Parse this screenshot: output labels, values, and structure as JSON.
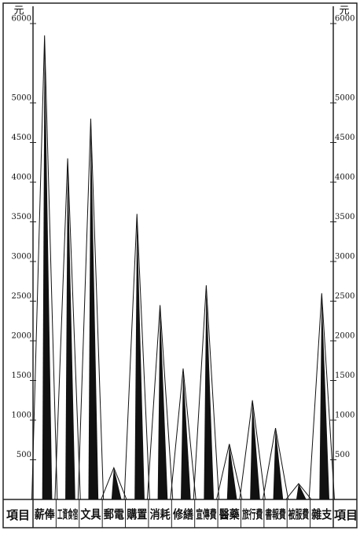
{
  "chart_data": {
    "type": "spike",
    "unit": "元",
    "axis_label": "項目",
    "categories": [
      "薪俸",
      "工資食宿",
      "文具",
      "郵電",
      "購置",
      "消耗",
      "修繕",
      "宣傳費",
      "醫藥",
      "旅行費",
      "書報費",
      "被服費",
      "雜支"
    ],
    "values": [
      5850,
      4300,
      4800,
      400,
      3600,
      2450,
      1650,
      2700,
      700,
      1250,
      900,
      200,
      2600
    ],
    "color": "#111111",
    "ylim": [
      0,
      6000
    ],
    "yticks": [
      500,
      1000,
      1500,
      2000,
      2500,
      3000,
      3500,
      4000,
      4500,
      5000,
      6000
    ]
  }
}
